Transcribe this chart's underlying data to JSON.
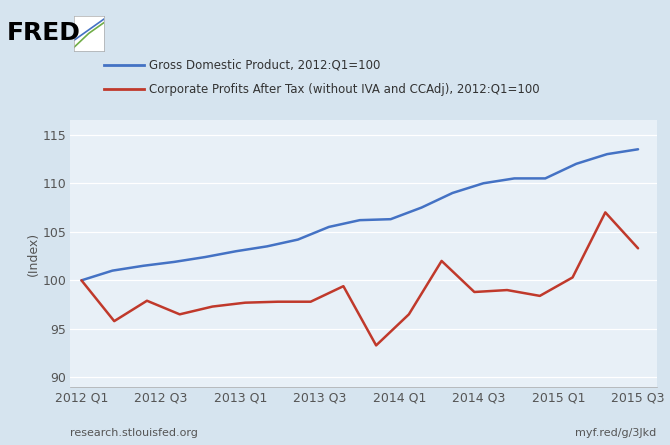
{
  "gdp": [
    100.0,
    101.0,
    101.5,
    101.9,
    102.2,
    102.7,
    103.2,
    103.6,
    104.3,
    105.0,
    105.5,
    106.2,
    106.3,
    107.5,
    108.5,
    109.0,
    109.8,
    110.0,
    110.5,
    110.5,
    111.2,
    112.0,
    113.0,
    113.5
  ],
  "corp_profits": [
    100.0,
    97.5,
    95.8,
    97.2,
    97.9,
    96.8,
    96.5,
    97.0,
    97.3,
    97.5,
    97.7,
    97.6,
    97.8,
    97.8,
    98.0,
    99.4,
    97.7,
    93.3,
    96.5,
    102.0,
    98.8,
    99.0,
    98.4,
    100.3,
    107.0,
    103.3
  ],
  "gdp_x": [
    0,
    1,
    2,
    3,
    4,
    5,
    6,
    7,
    8,
    9,
    10,
    11,
    12,
    13,
    14,
    15,
    16,
    17,
    18,
    19,
    20,
    21,
    22,
    23
  ],
  "corp_x": [
    0,
    1,
    2,
    3,
    4,
    5,
    6,
    7,
    8,
    9,
    10,
    11,
    12,
    13,
    14,
    15,
    16,
    17,
    18,
    19,
    20,
    21,
    22,
    23,
    24,
    25
  ],
  "xtick_positions": [
    0,
    4,
    8,
    12,
    16,
    20,
    24,
    28
  ],
  "xtick_labels": [
    "2012 Q1",
    "2012 Q3",
    "2013 Q1",
    "2013 Q3",
    "2014 Q1",
    "2014 Q3",
    "2015 Q1",
    "2015 Q3"
  ],
  "xlim": [
    -0.5,
    25.5
  ],
  "yticks": [
    90,
    95,
    100,
    105,
    110,
    115
  ],
  "ylim": [
    89.0,
    116.5
  ],
  "gdp_color": "#4472c4",
  "corp_color": "#c0392b",
  "bg_outer": "#d6e4ef",
  "bg_inner": "#e8f0f7",
  "grid_color": "#ffffff",
  "ylabel": "(Index)",
  "legend1": "Gross Domestic Product, 2012:Q1=100",
  "legend2": "Corporate Profits After Tax (without IVA and CCAdj), 2012:Q1=100",
  "url_left": "research.stlouisfed.org",
  "url_right": "myf.red/g/3Jkd"
}
